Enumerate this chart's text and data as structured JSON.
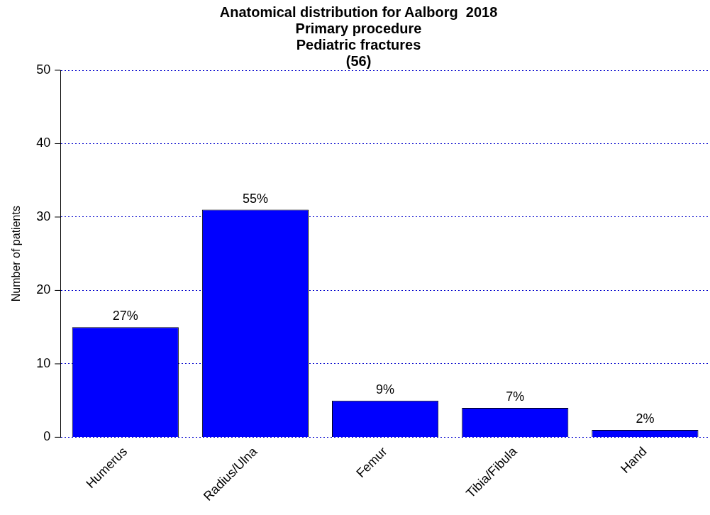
{
  "chart_data": {
    "type": "bar",
    "title": "Anatomical distribution for Aalborg  2018\nPrimary procedure\nPediatric fractures\n(56)",
    "ylabel": "Number of patients",
    "categories": [
      "Humerus",
      "Radius/Ulna",
      "Femur",
      "Tibia/Fibula",
      "Hand"
    ],
    "values": [
      15,
      31,
      5,
      4,
      1
    ],
    "color": "#0000ff",
    "annotations": [
      {
        "text": "27%",
        "x": "Humerus",
        "y": 15
      },
      {
        "text": "55%",
        "x": "Radius/Ulna",
        "y": 31
      },
      {
        "text": "9%",
        "x": "Femur",
        "y": 5
      },
      {
        "text": "7%",
        "x": "Tibia/Fibula",
        "y": 4
      },
      {
        "text": "2%",
        "x": "Hand",
        "y": 1
      }
    ],
    "ylim": [
      0,
      50
    ],
    "yticks": [
      0,
      10,
      20,
      30,
      40,
      50
    ],
    "grid": "y",
    "legend": false
  }
}
